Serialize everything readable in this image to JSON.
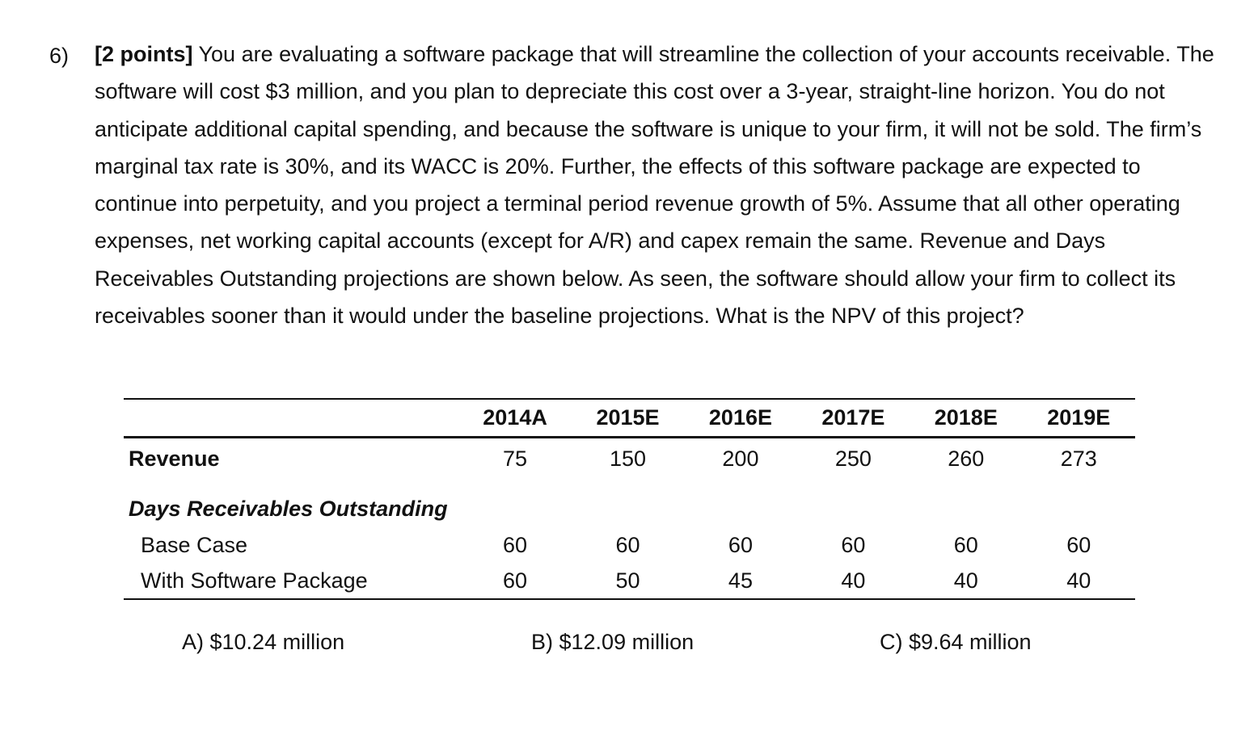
{
  "question": {
    "number": "6)",
    "points": "[2 points]",
    "body": " You are evaluating a software package that will streamline the collection of your accounts receivable.  The software will cost $3 million, and you plan to depreciate this cost over a 3-year, straight-line horizon.  You do not anticipate additional capital spending, and because the software is unique to your firm, it will not be sold.  The firm’s marginal tax rate is 30%, and its WACC is 20%.  Further, the effects of this software package are expected to continue into perpetuity, and you project a terminal period revenue growth of 5%.  Assume that all other operating expenses, net working capital accounts (except for A/R) and capex remain the same.  Revenue and Days Receivables Outstanding projections are shown below.  As seen, the software should allow your firm to collect its receivables sooner than it would under the baseline projections.  What is the NPV of this project?"
  },
  "table": {
    "headers": [
      "2014A",
      "2015E",
      "2016E",
      "2017E",
      "2018E",
      "2019E"
    ],
    "revenue": {
      "label": "Revenue",
      "values": [
        "75",
        "150",
        "200",
        "250",
        "260",
        "273"
      ]
    },
    "dro_section_label": "Days Receivables Outstanding",
    "base_case": {
      "label": "Base Case",
      "values": [
        "60",
        "60",
        "60",
        "60",
        "60",
        "60"
      ]
    },
    "with_software": {
      "label": "With Software Package",
      "values": [
        "60",
        "50",
        "45",
        "40",
        "40",
        "40"
      ]
    }
  },
  "answers": {
    "a": "A)   $10.24 million",
    "b": "B)  $12.09 million",
    "c": "C)  $9.64 million"
  }
}
